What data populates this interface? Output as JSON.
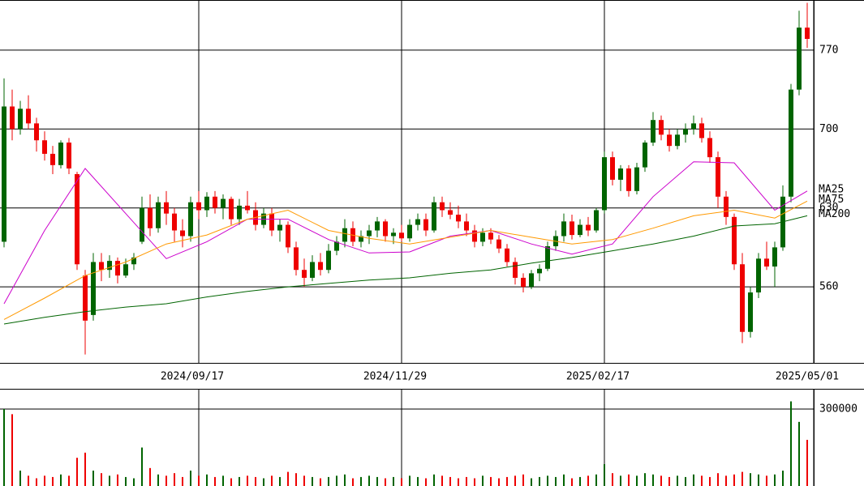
{
  "chart_data": [
    {
      "type": "candlestick",
      "xlim": [
        -0.5,
        99.8
      ],
      "ylim": [
        492.5,
        814.5
      ],
      "xticks": [
        {
          "value": 24,
          "label": "2024/09/17"
        },
        {
          "value": 49,
          "label": "2024/11/29"
        },
        {
          "value": 74,
          "label": "2025/02/17"
        },
        {
          "value": 99.8,
          "label": "2025/05/01"
        }
      ],
      "yticks": [
        770,
        700,
        630,
        560
      ],
      "grid": true,
      "up_color": "#006400",
      "down_color": "#ee0000",
      "open": [
        600,
        720,
        700,
        718,
        705,
        690,
        678,
        668,
        688,
        660,
        570,
        535,
        582,
        575,
        583,
        570,
        580,
        600,
        630,
        612,
        635,
        625,
        610,
        605,
        635,
        628,
        640,
        630,
        638,
        620,
        632,
        628,
        615,
        625,
        610,
        615,
        595,
        575,
        568,
        582,
        575,
        592,
        600,
        612,
        600,
        605,
        610,
        618,
        605,
        608,
        603,
        615,
        620,
        610,
        635,
        628,
        624,
        618,
        610,
        600,
        608,
        602,
        594,
        582,
        568,
        560,
        572,
        576,
        596,
        605,
        618,
        606,
        615,
        610,
        628,
        675,
        655,
        665,
        645,
        666,
        688,
        708,
        695,
        685,
        695,
        700,
        705,
        692,
        675,
        640,
        622,
        580,
        520,
        555,
        585,
        578,
        595,
        640,
        735,
        790
      ],
      "high": [
        745,
        735,
        725,
        730,
        710,
        698,
        685,
        690,
        692,
        662,
        575,
        590,
        590,
        588,
        586,
        585,
        590,
        640,
        642,
        640,
        645,
        630,
        620,
        640,
        645,
        644,
        645,
        642,
        640,
        638,
        645,
        635,
        630,
        630,
        620,
        618,
        600,
        585,
        588,
        590,
        598,
        605,
        620,
        618,
        610,
        615,
        622,
        620,
        612,
        615,
        620,
        625,
        625,
        640,
        640,
        635,
        632,
        625,
        615,
        612,
        612,
        606,
        598,
        586,
        572,
        575,
        580,
        600,
        610,
        625,
        624,
        620,
        622,
        630,
        680,
        680,
        668,
        668,
        670,
        690,
        715,
        712,
        700,
        700,
        705,
        712,
        710,
        698,
        680,
        645,
        625,
        590,
        560,
        590,
        600,
        600,
        650,
        740,
        805,
        812
      ],
      "low": [
        595,
        690,
        695,
        700,
        680,
        672,
        660,
        665,
        660,
        575,
        500,
        530,
        565,
        568,
        563,
        568,
        575,
        598,
        605,
        608,
        615,
        600,
        595,
        600,
        620,
        622,
        625,
        620,
        615,
        615,
        625,
        610,
        612,
        605,
        600,
        590,
        570,
        560,
        565,
        570,
        572,
        588,
        595,
        596,
        595,
        598,
        604,
        600,
        598,
        600,
        600,
        610,
        605,
        608,
        622,
        620,
        612,
        605,
        595,
        596,
        598,
        590,
        578,
        562,
        555,
        558,
        565,
        574,
        592,
        600,
        602,
        604,
        605,
        608,
        625,
        650,
        645,
        640,
        642,
        662,
        685,
        690,
        680,
        682,
        688,
        695,
        688,
        670,
        630,
        615,
        575,
        510,
        515,
        550,
        575,
        560,
        592,
        635,
        730,
        772
      ],
      "close": [
        720,
        700,
        718,
        705,
        690,
        678,
        668,
        688,
        665,
        580,
        530,
        582,
        575,
        583,
        570,
        580,
        586,
        630,
        612,
        635,
        625,
        610,
        605,
        635,
        628,
        640,
        630,
        638,
        620,
        632,
        628,
        615,
        625,
        610,
        615,
        595,
        575,
        568,
        582,
        575,
        592,
        600,
        612,
        600,
        605,
        610,
        618,
        605,
        608,
        603,
        615,
        620,
        610,
        635,
        628,
        624,
        618,
        610,
        600,
        608,
        602,
        594,
        582,
        568,
        560,
        572,
        576,
        596,
        605,
        618,
        606,
        615,
        610,
        628,
        675,
        655,
        665,
        645,
        666,
        688,
        708,
        695,
        685,
        695,
        700,
        705,
        692,
        675,
        640,
        622,
        580,
        520,
        555,
        585,
        578,
        595,
        640,
        735,
        790,
        780
      ],
      "series": [
        {
          "name": "MA25",
          "color": "#cc00cc",
          "x": [
            0,
            5,
            10,
            15,
            20,
            25,
            30,
            35,
            40,
            45,
            50,
            55,
            60,
            65,
            70,
            75,
            80,
            85,
            90,
            95,
            99
          ],
          "values": [
            545,
            610,
            665,
            625,
            585,
            600,
            620,
            620,
            602,
            590,
            591,
            605,
            610,
            598,
            589,
            598,
            640,
            671,
            670,
            628,
            645
          ]
        },
        {
          "name": "MA75",
          "color": "#ff9900",
          "x": [
            0,
            5,
            10,
            15,
            20,
            25,
            30,
            35,
            40,
            45,
            50,
            55,
            60,
            65,
            70,
            75,
            80,
            85,
            90,
            95,
            99
          ],
          "values": [
            531,
            550,
            570,
            582,
            598,
            606,
            620,
            628,
            610,
            603,
            598,
            604,
            610,
            604,
            598,
            602,
            612,
            623,
            628,
            621,
            636
          ]
        },
        {
          "name": "MA200",
          "color": "#006400",
          "x": [
            0,
            5,
            10,
            15,
            20,
            25,
            30,
            35,
            40,
            45,
            50,
            55,
            60,
            65,
            70,
            75,
            80,
            85,
            90,
            95,
            99
          ],
          "values": [
            527,
            533,
            538,
            542,
            545,
            551,
            556,
            560,
            563,
            566,
            568,
            572,
            575,
            581,
            586,
            592,
            598,
            605,
            614,
            616,
            623
          ]
        }
      ]
    },
    {
      "type": "bar",
      "ylim": [
        0,
        379000
      ],
      "yticks": [
        300000
      ],
      "grid": true,
      "values": [
        300000,
        280000,
        60000,
        40000,
        30000,
        40000,
        35000,
        45000,
        40000,
        110000,
        130000,
        60000,
        50000,
        40000,
        45000,
        35000,
        30000,
        150000,
        70000,
        45000,
        40000,
        50000,
        35000,
        60000,
        40000,
        45000,
        35000,
        40000,
        30000,
        35000,
        40000,
        35000,
        30000,
        40000,
        35000,
        55000,
        50000,
        40000,
        35000,
        30000,
        35000,
        40000,
        45000,
        30000,
        35000,
        40000,
        35000,
        30000,
        35000,
        30000,
        40000,
        35000,
        30000,
        45000,
        40000,
        35000,
        30000,
        35000,
        30000,
        40000,
        35000,
        30000,
        35000,
        40000,
        45000,
        30000,
        35000,
        40000,
        35000,
        45000,
        30000,
        35000,
        40000,
        45000,
        85000,
        50000,
        40000,
        45000,
        40000,
        50000,
        45000,
        40000,
        35000,
        40000,
        35000,
        45000,
        40000,
        35000,
        50000,
        40000,
        45000,
        55000,
        50000,
        45000,
        40000,
        45000,
        60000,
        330000,
        250000,
        180000
      ]
    }
  ]
}
